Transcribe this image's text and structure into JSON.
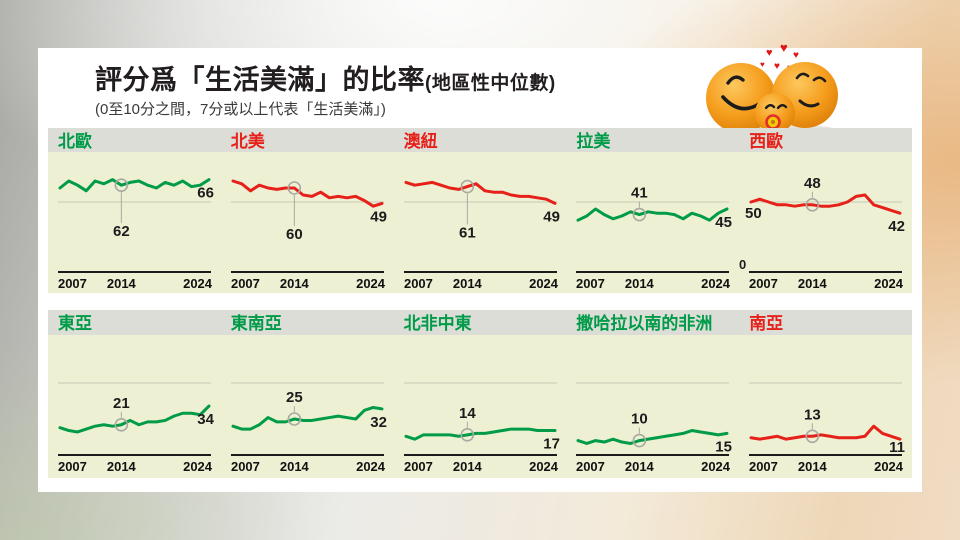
{
  "page": {
    "title_main": "評分爲「生活美滿」的比率",
    "title_paren": "(地區性中位數)",
    "subtitle": "(0至10分之間，7分或以上代表「生活美滿」)"
  },
  "colors": {
    "green": "#009b48",
    "red": "#e6211a",
    "chart_bg": "#eef0d4",
    "header_bg": "#dcddd6",
    "grid": "#cdd0ba",
    "axis": "#1b1b1b",
    "label": "#1c1c1c",
    "marker": "#a9aaa0",
    "heart": "#e01815",
    "ball_orange": "#f59d1d"
  },
  "chart_data": {
    "type": "line",
    "x_years": [
      2007,
      2008,
      2009,
      2010,
      2011,
      2012,
      2013,
      2014,
      2015,
      2016,
      2017,
      2018,
      2019,
      2020,
      2021,
      2022,
      2023,
      2024
    ],
    "x_ticks": [
      "2007",
      "2014",
      "2024"
    ],
    "ylim": [
      0,
      85
    ],
    "gridline_value": 50,
    "marker_year": 2014,
    "charts": [
      {
        "id": "nordic",
        "title": "北歐",
        "color": "green",
        "values": [
          60,
          65,
          62,
          58,
          65,
          63,
          66,
          62,
          64,
          65,
          62,
          60,
          64,
          62,
          65,
          61,
          62,
          66
        ],
        "marker_value": 62,
        "marker_label_position": "below",
        "end_label": 66
      },
      {
        "id": "north-america",
        "title": "北美",
        "color": "red",
        "values": [
          65,
          63,
          58,
          62,
          60,
          59,
          60,
          60,
          55,
          54,
          57,
          53,
          54,
          53,
          54,
          51,
          47,
          49
        ],
        "marker_value": 60,
        "marker_label_position": "below",
        "end_label": 49
      },
      {
        "id": "australia-nz",
        "title": "澳紐",
        "color": "red",
        "values": [
          64,
          62,
          63,
          64,
          62,
          60,
          59,
          61,
          63,
          58,
          57,
          57,
          55,
          54,
          54,
          53,
          52,
          49
        ],
        "marker_value": 61,
        "marker_label_position": "below",
        "end_label": 49
      },
      {
        "id": "latin-america",
        "title": "拉美",
        "color": "green",
        "values": [
          37,
          40,
          45,
          41,
          38,
          40,
          43,
          41,
          43,
          42,
          42,
          41,
          38,
          42,
          40,
          37,
          42,
          45
        ],
        "marker_value": 41,
        "marker_label_position": "above",
        "end_label": 45
      },
      {
        "id": "western-europe",
        "title": "西歐",
        "color": "red",
        "values": [
          50,
          52,
          50,
          48,
          48,
          47,
          48,
          48,
          47,
          47,
          48,
          50,
          54,
          55,
          48,
          46,
          44,
          42
        ],
        "marker_value": 48,
        "marker_label_position": "above",
        "end_label": 42,
        "start_label": 50,
        "zero_label": "0"
      },
      {
        "id": "east-asia",
        "title": "東亞",
        "color": "green",
        "values": [
          19,
          17,
          16,
          18,
          20,
          21,
          20,
          21,
          24,
          21,
          23,
          23,
          24,
          27,
          29,
          29,
          28,
          34
        ],
        "marker_value": 21,
        "marker_label_position": "above",
        "end_label": 34
      },
      {
        "id": "southeast-asia",
        "title": "東南亞",
        "color": "green",
        "values": [
          20,
          18,
          18,
          21,
          26,
          23,
          23,
          25,
          24,
          24,
          25,
          26,
          27,
          26,
          25,
          31,
          33,
          32
        ],
        "marker_value": 25,
        "marker_label_position": "above",
        "end_label": 32
      },
      {
        "id": "north-africa-middle-east",
        "title": "北非中東",
        "color": "green",
        "values": [
          13,
          11,
          14,
          14,
          14,
          14,
          13,
          14,
          15,
          15,
          16,
          17,
          18,
          18,
          18,
          17,
          17,
          17
        ],
        "marker_value": 14,
        "marker_label_position": "above",
        "end_label": 17
      },
      {
        "id": "sub-saharan-africa",
        "title": "撒哈拉以南的非洲",
        "color": "green",
        "values": [
          10,
          8,
          10,
          9,
          11,
          9,
          8,
          10,
          11,
          12,
          13,
          14,
          15,
          17,
          16,
          15,
          14,
          15
        ],
        "marker_value": 10,
        "marker_label_position": "above",
        "end_label": 15
      },
      {
        "id": "south-asia",
        "title": "南亞",
        "color": "red",
        "values": [
          12,
          11,
          12,
          13,
          11,
          12,
          13,
          13,
          14,
          13,
          12,
          12,
          12,
          13,
          20,
          15,
          13,
          11
        ],
        "marker_value": 13,
        "marker_label_position": "above",
        "end_label": 11
      }
    ]
  }
}
